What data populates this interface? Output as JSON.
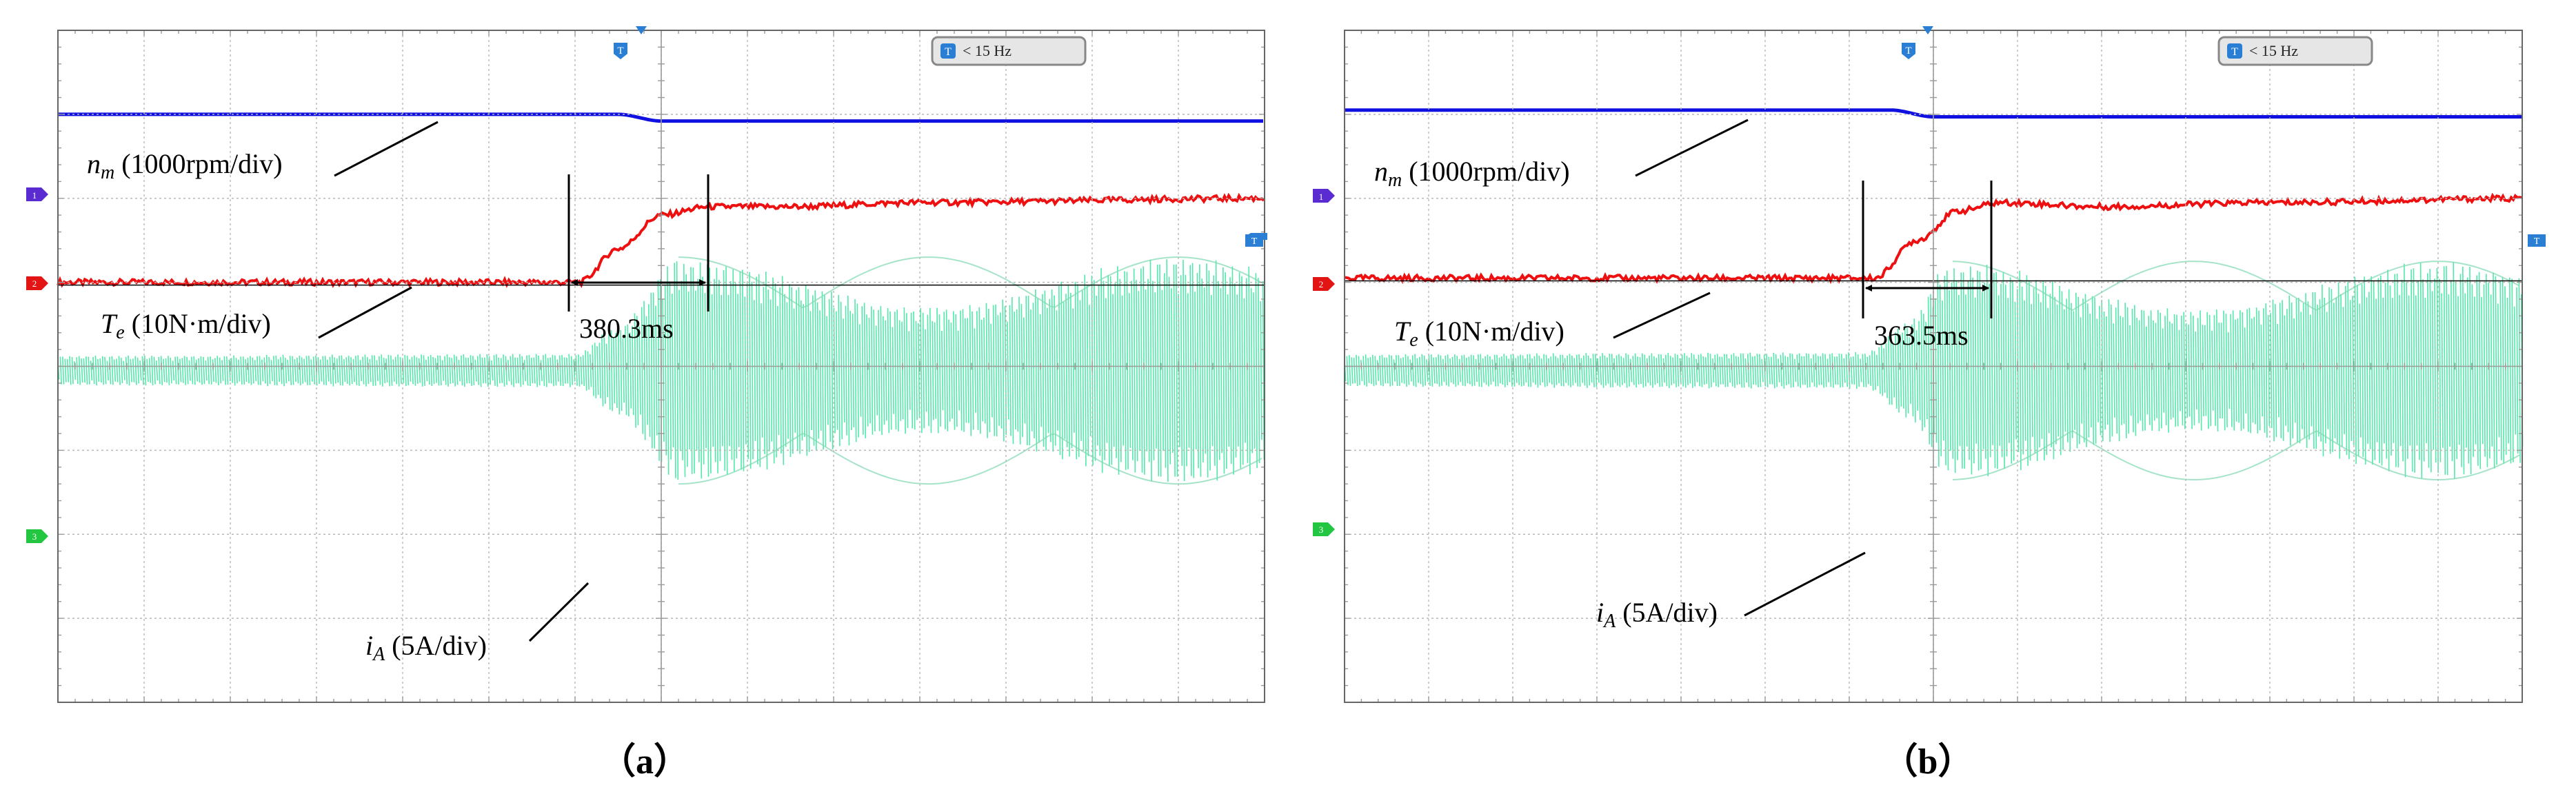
{
  "panels": [
    {
      "id": "a",
      "caption": "（a）",
      "badge": "< 15 Hz",
      "channel_markers": [
        "1",
        "2",
        "3"
      ],
      "labels": {
        "speed_prefix": "n",
        "speed_sub": "m",
        "speed_rest": " (1000rpm/div)",
        "torque_prefix": "T",
        "torque_sub": "e",
        "torque_rest": " (10N·m/div)",
        "current_prefix": "i",
        "current_sub": "A",
        "current_rest": " (5A/div)"
      },
      "measurement": "380.3ms"
    },
    {
      "id": "b",
      "caption": "（b）",
      "badge": "< 15 Hz",
      "channel_markers": [
        "1",
        "2",
        "3"
      ],
      "labels": {
        "speed_prefix": "n",
        "speed_sub": "m",
        "speed_rest": " (1000rpm/div)",
        "torque_prefix": "T",
        "torque_sub": "e",
        "torque_rest": " (10N·m/div)",
        "current_prefix": "i",
        "current_sub": "A",
        "current_rest": " (5A/div)"
      },
      "measurement": "363.5ms"
    }
  ],
  "chart_data": [
    {
      "type": "line",
      "panel": "a",
      "x_divisions": 14,
      "y_divisions": 8,
      "series": [
        {
          "name": "n_m",
          "scale": "1000rpm/div",
          "color": "#1010e0",
          "x": [
            0,
            6.5,
            7.0,
            14
          ],
          "y": [
            7.0,
            7.0,
            6.92,
            6.92
          ]
        },
        {
          "name": "T_e",
          "scale": "10N·m/div",
          "color": "#ee1010",
          "x": [
            0,
            6.05,
            6.5,
            7.0,
            7.55,
            8.5,
            10,
            14
          ],
          "y": [
            5.0,
            5.0,
            5.4,
            5.8,
            5.9,
            5.9,
            5.95,
            6.0
          ]
        },
        {
          "name": "i_A",
          "scale": "5A/div",
          "color": "#3ee6a0",
          "x": [
            0,
            6.0,
            6.5,
            7.2,
            14
          ],
          "amplitude": [
            0.18,
            0.2,
            0.55,
            1.35,
            1.35
          ]
        }
      ],
      "measurement": {
        "label": "380.3ms",
        "x_start": 6.05,
        "x_end": 7.75
      }
    },
    {
      "type": "line",
      "panel": "b",
      "x_divisions": 14,
      "y_divisions": 8,
      "series": [
        {
          "name": "n_m",
          "scale": "1000rpm/div",
          "color": "#1010e0",
          "x": [
            0,
            6.5,
            7.0,
            14
          ],
          "y": [
            7.05,
            7.05,
            6.97,
            6.97
          ]
        },
        {
          "name": "T_e",
          "scale": "10N·m/div",
          "color": "#ee1010",
          "x": [
            0,
            6.3,
            6.8,
            7.3,
            7.8,
            9,
            11,
            14
          ],
          "y": [
            5.05,
            5.05,
            5.5,
            5.85,
            5.95,
            5.9,
            5.95,
            6.0
          ]
        },
        {
          "name": "i_A",
          "scale": "5A/div",
          "color": "#3ee6a0",
          "x": [
            0,
            6.2,
            6.7,
            7.2,
            14
          ],
          "amplitude": [
            0.2,
            0.22,
            0.6,
            1.3,
            1.3
          ]
        }
      ],
      "measurement": {
        "label": "363.5ms",
        "x_start": 6.3,
        "x_end": 7.8
      }
    }
  ]
}
